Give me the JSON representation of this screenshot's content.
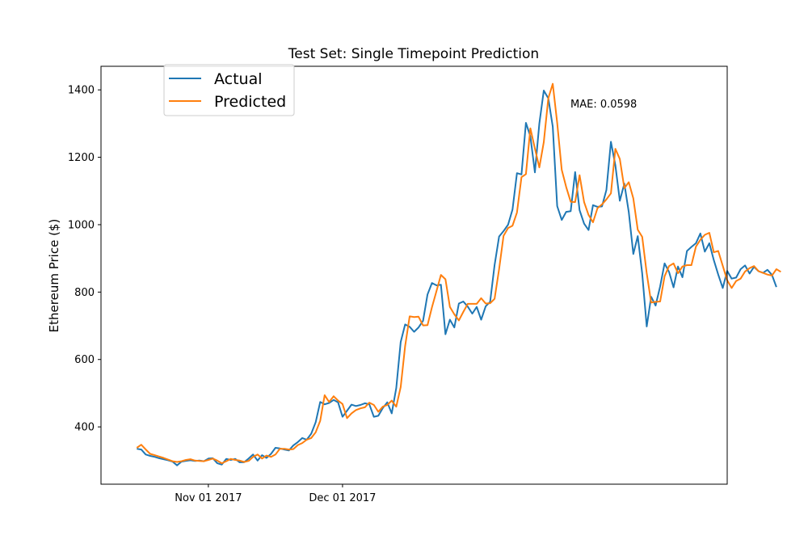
{
  "chart_data": {
    "type": "line",
    "title": "Test Set: Single Timepoint Prediction",
    "xlabel": "",
    "ylabel": "Ethereum Price ($)",
    "x_start": "2017-10-16",
    "x_end": "2018-02-18",
    "xlim": [
      "2017-10-08",
      "2018-02-25"
    ],
    "ylim": [
      230,
      1470
    ],
    "yticks": [
      400,
      600,
      800,
      1000,
      1200,
      1400
    ],
    "xticks": [
      {
        "date": "2017-11-01",
        "label": "Nov 01 2017"
      },
      {
        "date": "2017-12-01",
        "label": "Dec 01 2017"
      }
    ],
    "grid": false,
    "legend_position": "top-left",
    "annotation": "MAE: 0.0598",
    "series": [
      {
        "name": "Actual",
        "color": "#1f77b4",
        "values": [
          335,
          333,
          318,
          314,
          311,
          307,
          304,
          301,
          297,
          286,
          297,
          299,
          301,
          299,
          300,
          298,
          306,
          307,
          292,
          288,
          305,
          302,
          305,
          295,
          295,
          306,
          318,
          300,
          316,
          308,
          320,
          338,
          336,
          333,
          330,
          345,
          355,
          367,
          362,
          380,
          414,
          474,
          467,
          471,
          480,
          473,
          430,
          448,
          466,
          462,
          465,
          470,
          467,
          430,
          433,
          456,
          473,
          440,
          515,
          652,
          704,
          697,
          682,
          695,
          715,
          793,
          827,
          820,
          822,
          675,
          718,
          695,
          766,
          772,
          757,
          736,
          756,
          718,
          758,
          771,
          880,
          965,
          981,
          1000,
          1045,
          1153,
          1149,
          1302,
          1262,
          1155,
          1300,
          1398,
          1375,
          1291,
          1055,
          1014,
          1038,
          1040,
          1156,
          1043,
          1003,
          984,
          1058,
          1053,
          1054,
          1103,
          1246,
          1176,
          1071,
          1122,
          1037,
          913,
          966,
          855,
          698,
          786,
          760,
          817,
          885,
          860,
          814,
          876,
          844,
          922,
          934,
          945,
          974,
          920,
          945,
          895,
          852,
          812,
          863,
          840,
          843,
          868,
          879,
          855,
          875,
          862,
          857,
          866,
          851,
          815
        ]
      },
      {
        "name": "Predicted",
        "color": "#ff7f0e",
        "values": [
          338,
          347,
          333,
          320,
          316,
          312,
          308,
          303,
          298,
          296,
          298,
          302,
          304,
          300,
          299,
          298,
          302,
          306,
          300,
          292,
          298,
          305,
          302,
          300,
          296,
          299,
          311,
          318,
          306,
          315,
          311,
          318,
          335,
          335,
          333,
          334,
          346,
          352,
          362,
          367,
          384,
          418,
          494,
          474,
          491,
          478,
          468,
          426,
          440,
          450,
          455,
          458,
          472,
          465,
          445,
          460,
          465,
          478,
          460,
          518,
          640,
          728,
          726,
          727,
          701,
          702,
          755,
          803,
          851,
          838,
          756,
          734,
          716,
          741,
          765,
          765,
          765,
          782,
          766,
          767,
          780,
          868,
          967,
          990,
          997,
          1036,
          1141,
          1150,
          1286,
          1226,
          1170,
          1245,
          1375,
          1418,
          1302,
          1163,
          1112,
          1068,
          1067,
          1147,
          1067,
          1029,
          1007,
          1049,
          1060,
          1075,
          1093,
          1225,
          1195,
          1108,
          1126,
          1078,
          985,
          964,
          856,
          769,
          771,
          772,
          847,
          877,
          885,
          856,
          876,
          880,
          880,
          935,
          955,
          970,
          976,
          918,
          922,
          878,
          835,
          812,
          833,
          840,
          861,
          871,
          877,
          862,
          857,
          852,
          849,
          868,
          860
        ]
      }
    ]
  }
}
